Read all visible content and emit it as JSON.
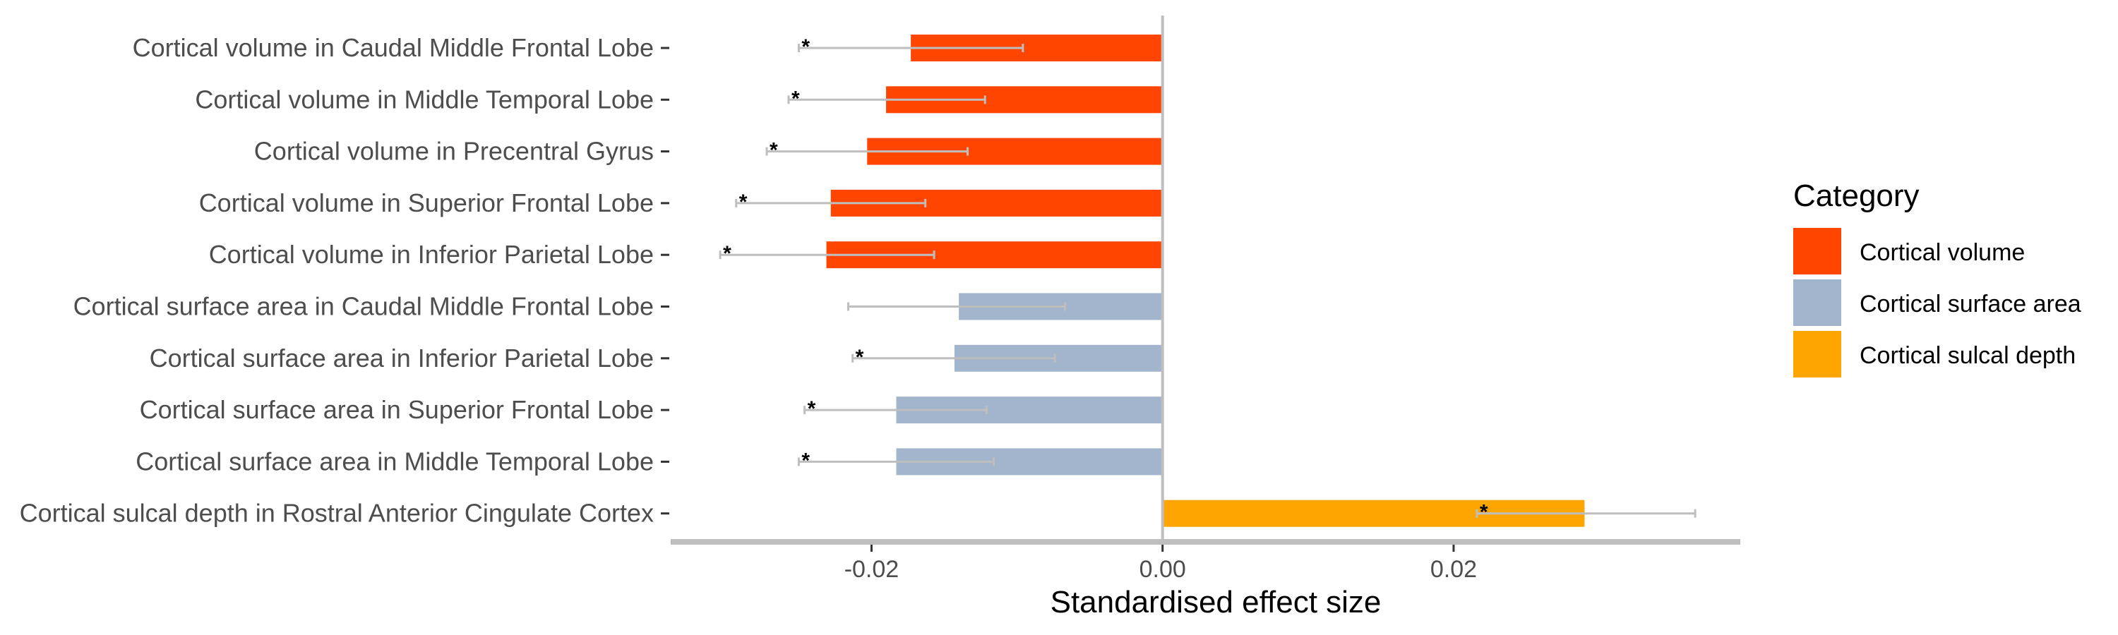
{
  "chart_data": {
    "type": "bar",
    "orientation": "horizontal",
    "xlabel": "Standardised effect size",
    "ylabel": "",
    "xlim": [
      -0.0338,
      0.0397
    ],
    "xticks": [
      -0.02,
      0.0,
      0.02
    ],
    "xtick_labels": [
      "-0.02",
      "0.00",
      "0.02"
    ],
    "grid": false,
    "legend": {
      "title": "Category",
      "placement": "right",
      "entries": [
        {
          "label": "Cortical volume",
          "color": "#FF4500"
        },
        {
          "label": "Cortical surface area",
          "color": "#A2B5CD"
        },
        {
          "label": "Cortical sulcal depth",
          "color": "#FFA500"
        }
      ]
    },
    "errorbar_color": "#BEBEBE",
    "significance_marker": "*",
    "bars": [
      {
        "label": "Cortical volume in Caudal Middle Frontal Lobe",
        "category": "Cortical volume",
        "value": -0.0173,
        "ci": [
          -0.025,
          -0.0096
        ],
        "significant": true
      },
      {
        "label": "Cortical volume in Middle Temporal Lobe",
        "category": "Cortical volume",
        "value": -0.019,
        "ci": [
          -0.0257,
          -0.0122
        ],
        "significant": true
      },
      {
        "label": "Cortical volume in Precentral Gyrus",
        "category": "Cortical volume",
        "value": -0.0203,
        "ci": [
          -0.0272,
          -0.0134
        ],
        "significant": true
      },
      {
        "label": "Cortical volume in Superior Frontal Lobe",
        "category": "Cortical volume",
        "value": -0.0228,
        "ci": [
          -0.0293,
          -0.0163
        ],
        "significant": true
      },
      {
        "label": "Cortical volume in Inferior Parietal Lobe",
        "category": "Cortical volume",
        "value": -0.0231,
        "ci": [
          -0.0304,
          -0.0157
        ],
        "significant": true
      },
      {
        "label": "Cortical surface area in Caudal Middle Frontal Lobe",
        "category": "Cortical surface area",
        "value": -0.014,
        "ci": [
          -0.0216,
          -0.0067
        ],
        "significant": false
      },
      {
        "label": "Cortical surface area in Inferior Parietal Lobe",
        "category": "Cortical surface area",
        "value": -0.0143,
        "ci": [
          -0.0213,
          -0.0074
        ],
        "significant": true
      },
      {
        "label": "Cortical surface area in Superior Frontal Lobe",
        "category": "Cortical surface area",
        "value": -0.0183,
        "ci": [
          -0.0246,
          -0.0121
        ],
        "significant": true
      },
      {
        "label": "Cortical surface area in Middle Temporal Lobe",
        "category": "Cortical surface area",
        "value": -0.0183,
        "ci": [
          -0.025,
          -0.0116
        ],
        "significant": true
      },
      {
        "label": "Cortical sulcal depth in Rostral Anterior Cingulate Cortex",
        "category": "Cortical sulcal depth",
        "value": 0.029,
        "ci": [
          0.0216,
          0.0366
        ],
        "significant": true
      }
    ]
  }
}
